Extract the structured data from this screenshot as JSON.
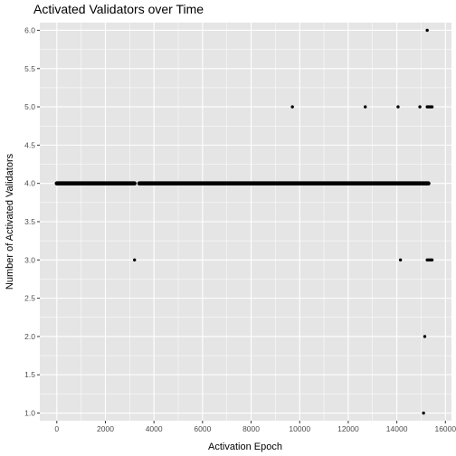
{
  "chart_data": {
    "type": "scatter",
    "title": "Activated Validators over Time",
    "xlabel": "Activation Epoch",
    "ylabel": "Number of Activated Validators",
    "xlim": [
      -700,
      16250
    ],
    "ylim": [
      0.9,
      6.1
    ],
    "x_ticks": [
      0,
      2000,
      4000,
      6000,
      8000,
      10000,
      12000,
      14000,
      16000
    ],
    "y_ticks": [
      1.0,
      1.5,
      2.0,
      2.5,
      3.0,
      3.5,
      4.0,
      4.5,
      5.0,
      5.5,
      6.0
    ],
    "grid": true,
    "background": "#e5e5e5",
    "grid_color": "#ffffff",
    "point_color": "#000000",
    "series": [
      {
        "bands": [
          {
            "y": 4.0,
            "x_start": 0,
            "x_end": 3200
          },
          {
            "y": 4.0,
            "x_start": 3400,
            "x_end": 15300
          }
        ],
        "points": [
          {
            "x": 3200,
            "y": 3.0
          },
          {
            "x": 9700,
            "y": 5.0
          },
          {
            "x": 12700,
            "y": 5.0
          },
          {
            "x": 14050,
            "y": 5.0
          },
          {
            "x": 14150,
            "y": 3.0
          },
          {
            "x": 14950,
            "y": 5.0
          },
          {
            "x": 15100,
            "y": 1.0
          },
          {
            "x": 15150,
            "y": 2.0
          },
          {
            "x": 15250,
            "y": 6.0
          },
          {
            "x": 15250,
            "y": 3.0
          },
          {
            "x": 15300,
            "y": 3.0
          },
          {
            "x": 15350,
            "y": 3.0
          },
          {
            "x": 15400,
            "y": 3.0
          },
          {
            "x": 15450,
            "y": 3.0
          },
          {
            "x": 15250,
            "y": 5.0
          },
          {
            "x": 15300,
            "y": 5.0
          },
          {
            "x": 15350,
            "y": 5.0
          },
          {
            "x": 15400,
            "y": 5.0
          },
          {
            "x": 15450,
            "y": 5.0
          }
        ]
      }
    ]
  }
}
